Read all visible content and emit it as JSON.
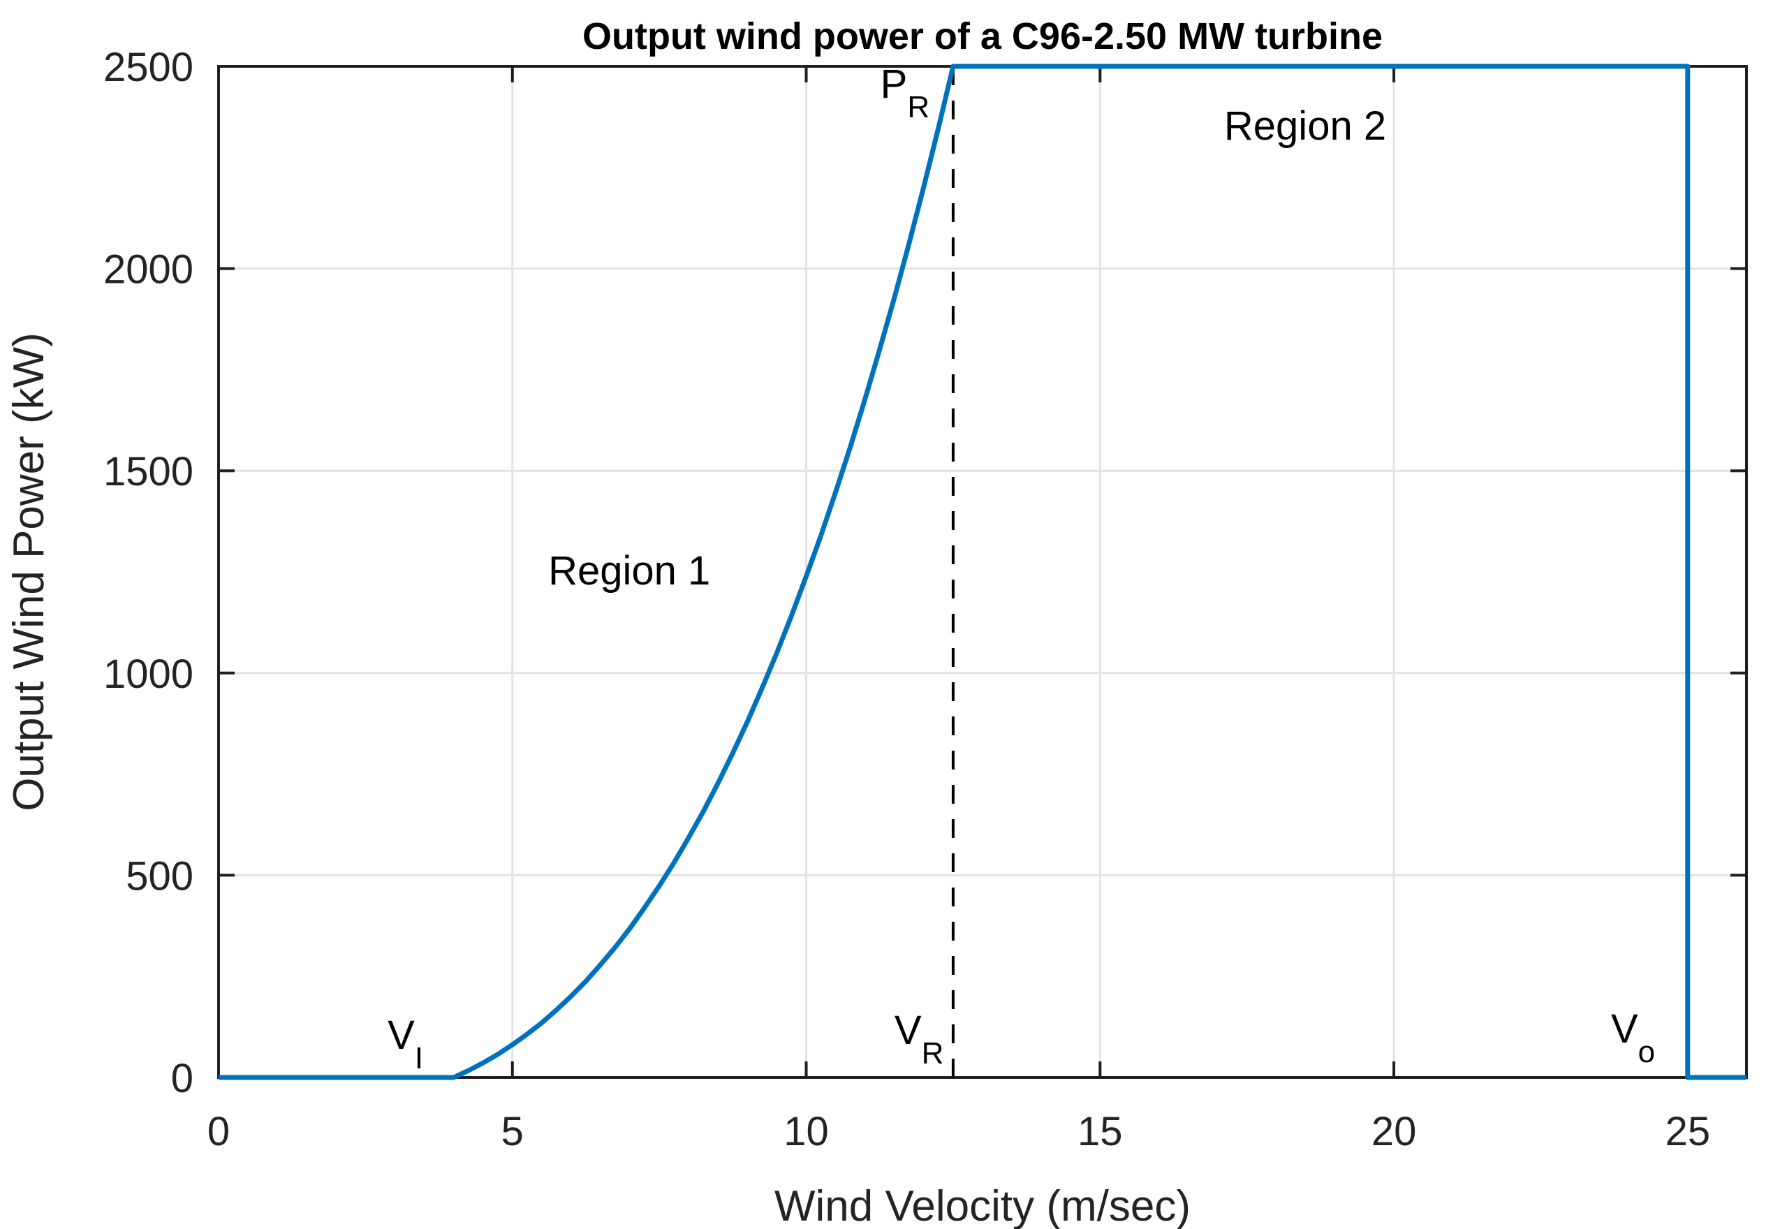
{
  "chart_data": {
    "type": "line",
    "title": "Output wind power of a C96-2.50 MW turbine",
    "xlabel": "Wind Velocity (m/sec)",
    "ylabel": "Output Wind Power (kW)",
    "xlim": [
      0,
      26
    ],
    "ylim": [
      0,
      2500
    ],
    "xticks": [
      0,
      5,
      10,
      15,
      20,
      25
    ],
    "yticks": [
      0,
      500,
      1000,
      1500,
      2000,
      2500
    ],
    "grid": true,
    "legend": "none",
    "colors": {
      "curve": "#0072BD",
      "axis": "#1f1f1f",
      "grid": "#e3e3e3",
      "reference": "#000000",
      "text": "#232323",
      "title": "#000000"
    },
    "key_points": {
      "cut_in_velocity_mps": 4,
      "rated_velocity_mps": 12.5,
      "cut_out_velocity_mps": 25,
      "rated_power_kW": 2500
    },
    "series": [
      {
        "name": "turbine-power-curve",
        "color": "#0072BD",
        "points": [
          [
            0,
            0
          ],
          [
            4,
            0
          ],
          [
            4.25,
            17
          ],
          [
            4.5,
            36
          ],
          [
            4.75,
            57
          ],
          [
            5,
            81
          ],
          [
            5.25,
            107
          ],
          [
            5.5,
            135
          ],
          [
            5.75,
            167
          ],
          [
            6,
            201
          ],
          [
            6.25,
            238
          ],
          [
            6.5,
            279
          ],
          [
            6.75,
            322
          ],
          [
            7,
            369
          ],
          [
            7.25,
            420
          ],
          [
            7.5,
            474
          ],
          [
            7.75,
            531
          ],
          [
            8,
            593
          ],
          [
            8.25,
            658
          ],
          [
            8.5,
            728
          ],
          [
            8.75,
            802
          ],
          [
            9,
            880
          ],
          [
            9.25,
            963
          ],
          [
            9.5,
            1050
          ],
          [
            9.75,
            1142
          ],
          [
            10,
            1239
          ],
          [
            10.25,
            1340
          ],
          [
            10.5,
            1447
          ],
          [
            10.75,
            1559
          ],
          [
            11,
            1677
          ],
          [
            11.25,
            1800
          ],
          [
            11.5,
            1928
          ],
          [
            11.75,
            2062
          ],
          [
            12,
            2202
          ],
          [
            12.25,
            2348
          ],
          [
            12.5,
            2500
          ],
          [
            25,
            2500
          ],
          [
            25,
            0
          ],
          [
            26,
            0
          ]
        ]
      }
    ],
    "reference_lines": [
      {
        "orientation": "vertical",
        "x": 12.5,
        "style": "dashed",
        "color": "#000000"
      }
    ],
    "annotations": [
      {
        "id": "rated-power-label",
        "text": "P",
        "sub": "R",
        "x": 11.68,
        "y": 2422
      },
      {
        "id": "region-1-label",
        "text": "Region 1",
        "sub": "",
        "x": 6.99,
        "y": 1219
      },
      {
        "id": "region-2-label",
        "text": "Region 2",
        "sub": "",
        "x": 18.49,
        "y": 2319
      },
      {
        "id": "cut-in-velocity-label",
        "text": "V",
        "sub": "I",
        "x": 3.18,
        "y": 71
      },
      {
        "id": "rated-velocity-label",
        "text": "V",
        "sub": "R",
        "x": 11.92,
        "y": 83
      },
      {
        "id": "cut-out-velocity-label",
        "text": "V",
        "sub": "o",
        "x": 24.07,
        "y": 86
      }
    ]
  }
}
